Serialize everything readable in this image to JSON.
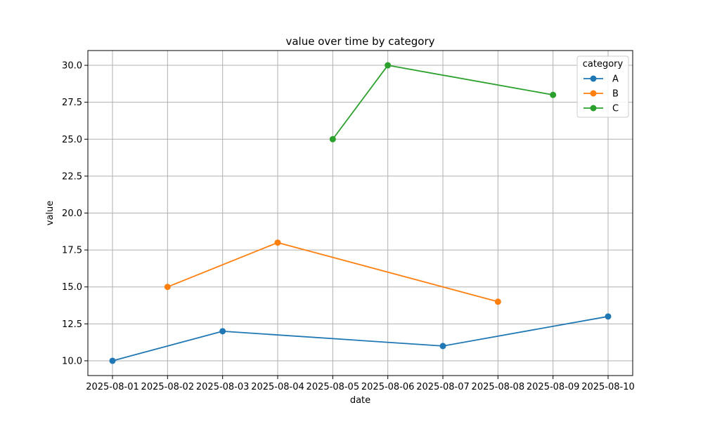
{
  "chart_data": {
    "type": "line",
    "title": "value over time by category",
    "xlabel": "date",
    "ylabel": "value",
    "x": [
      "2025-08-01",
      "2025-08-02",
      "2025-08-03",
      "2025-08-04",
      "2025-08-05",
      "2025-08-06",
      "2025-08-07",
      "2025-08-08",
      "2025-08-09",
      "2025-08-10"
    ],
    "ylim": [
      9.0,
      31.0
    ],
    "y_ticks": [
      "10.0",
      "12.5",
      "15.0",
      "17.5",
      "20.0",
      "22.5",
      "25.0",
      "27.5",
      "30.0"
    ],
    "grid": true,
    "legend": {
      "title": "category",
      "placement": "top-right"
    },
    "series": [
      {
        "name": "A",
        "color": "#1f77b4",
        "points": [
          {
            "x": "2025-08-01",
            "y": 10
          },
          {
            "x": "2025-08-03",
            "y": 12
          },
          {
            "x": "2025-08-07",
            "y": 11
          },
          {
            "x": "2025-08-10",
            "y": 13
          }
        ]
      },
      {
        "name": "B",
        "color": "#ff7f0e",
        "points": [
          {
            "x": "2025-08-02",
            "y": 15
          },
          {
            "x": "2025-08-04",
            "y": 18
          },
          {
            "x": "2025-08-08",
            "y": 14
          }
        ]
      },
      {
        "name": "C",
        "color": "#2ca02c",
        "points": [
          {
            "x": "2025-08-05",
            "y": 25
          },
          {
            "x": "2025-08-06",
            "y": 30
          },
          {
            "x": "2025-08-09",
            "y": 28
          }
        ]
      }
    ]
  }
}
